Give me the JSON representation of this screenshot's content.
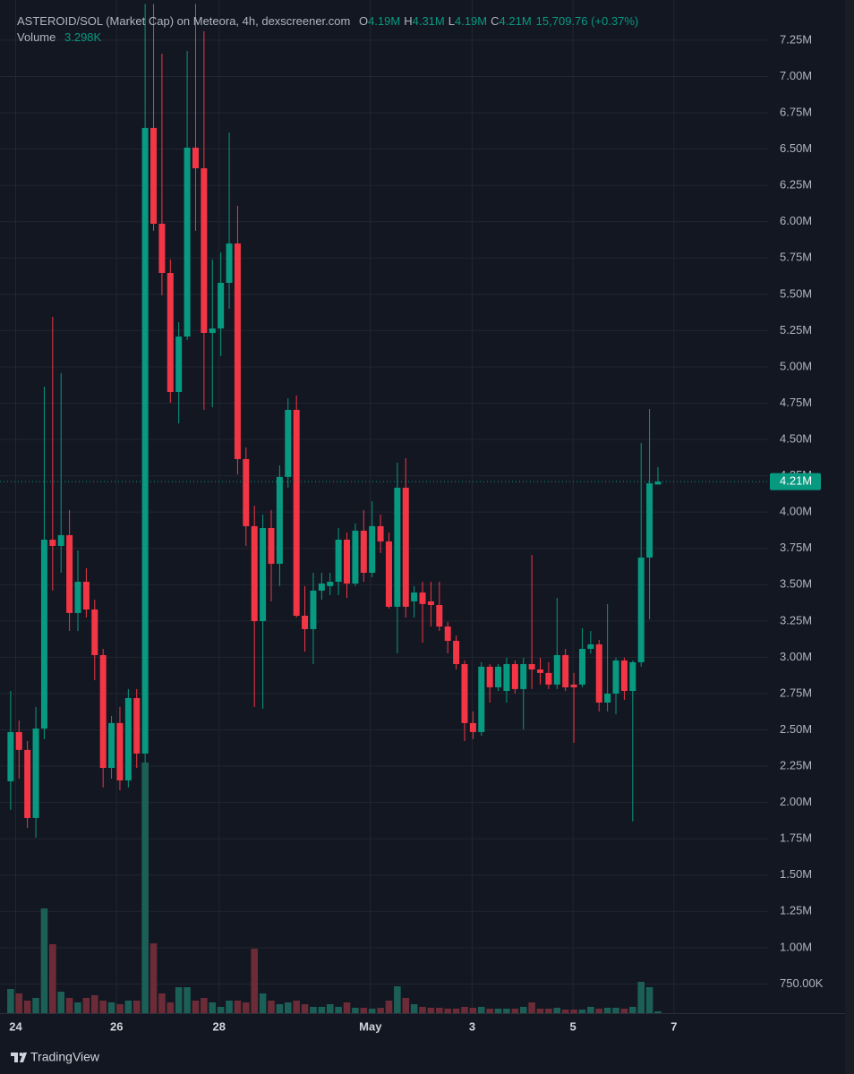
{
  "chart_data": {
    "type": "candlestick",
    "title": "ASTEROID/SOL (Market Cap) on Meteora, 4h, dexscreener.com",
    "ohlc_legend": [
      {
        "key": "O",
        "value": "4.19M"
      },
      {
        "key": "H",
        "value": "4.31M"
      },
      {
        "key": "L",
        "value": "4.19M"
      },
      {
        "key": "C",
        "value": "4.21M"
      }
    ],
    "change": "15,709.76 (+0.37%)",
    "volume_title": "Volume",
    "volume_value": "3.298K",
    "up_color": "#089981",
    "down_color": "#f23645",
    "volume_up_color": "#1b5f57",
    "volume_down_color": "#6b2c37",
    "grid": true,
    "open": [
      2146000,
      2485000,
      2362000,
      1893000,
      2509000,
      3810000,
      3767000,
      3841000,
      3305000,
      3520000,
      3329000,
      3015000,
      2238000,
      2547000,
      2152000,
      2719000,
      2337000,
      6646000,
      5986000,
      5647000,
      4827000,
      5209000,
      6510000,
      6368000,
      5234000,
      5265000,
      5579000,
      5850000,
      4365000,
      3903000,
      3249000,
      3890000,
      3644000,
      4242000,
      4704000,
      3286000,
      3194000,
      3459000,
      3490000,
      3520000,
      3810000,
      3508000,
      3872000,
      3582000,
      3903000,
      3798000,
      3348000,
      4168000,
      3385000,
      3446000,
      3385000,
      3360000,
      3212000,
      3113000,
      2953000,
      2547000,
      2485000,
      2935000,
      2793000,
      2768000,
      2953000,
      2781000,
      2953000,
      2916000,
      2892000,
      2812000,
      3015000,
      2812000,
      2812000,
      3058000,
      3089000,
      2688000,
      2750000,
      2978000,
      2768000,
      2966000,
      3687000,
      4190000
    ],
    "high": [
      2768000,
      2565000,
      2423000,
      2658000,
      4864000,
      5345000,
      4957000,
      4014000,
      3736000,
      3613000,
      3397000,
      3058000,
      2596000,
      2658000,
      2781000,
      2781000,
      7500000,
      7500000,
      7157000,
      5740000,
      5308000,
      7176000,
      7500000,
      7311000,
      5740000,
      5789000,
      6615000,
      6109000,
      4445000,
      4044000,
      3983000,
      4014000,
      4322000,
      4784000,
      4803000,
      3490000,
      3582000,
      3582000,
      3582000,
      3890000,
      3859000,
      3921000,
      4014000,
      4075000,
      3983000,
      3859000,
      4340000,
      4371000,
      3490000,
      3520000,
      3520000,
      3520000,
      3243000,
      3150000,
      2978000,
      2627000,
      2966000,
      2953000,
      2953000,
      2997000,
      2978000,
      2997000,
      3705000,
      2997000,
      2966000,
      3409000,
      3058000,
      2892000,
      3200000,
      3181000,
      3120000,
      3366000,
      2997000,
      2997000,
      2978000,
      4476000,
      4710000,
      4310000
    ],
    "low": [
      1949000,
      2164000,
      1825000,
      1758000,
      2436000,
      3459000,
      3582000,
      3181000,
      3181000,
      3274000,
      2842000,
      2103000,
      2164000,
      2084000,
      2103000,
      2238000,
      2275000,
      5937000,
      5493000,
      4753000,
      4611000,
      5185000,
      5937000,
      4704000,
      4722000,
      5074000,
      5400000,
      4260000,
      3767000,
      2658000,
      2646000,
      3385000,
      3490000,
      4168000,
      3274000,
      3039000,
      2953000,
      3397000,
      3428000,
      3428000,
      3409000,
      3490000,
      3520000,
      3551000,
      3718000,
      3336000,
      3027000,
      3274000,
      3274000,
      3101000,
      3212000,
      3181000,
      3027000,
      2916000,
      2423000,
      2436000,
      2460000,
      2688000,
      2768000,
      2688000,
      2750000,
      2503000,
      2781000,
      2812000,
      2781000,
      2781000,
      2768000,
      2411000,
      2793000,
      3027000,
      2627000,
      2627000,
      2608000,
      2707000,
      1869000,
      2935000,
      3261000,
      4190000
    ],
    "close": [
      2485000,
      2362000,
      1893000,
      2509000,
      3810000,
      3767000,
      3841000,
      3305000,
      3520000,
      3329000,
      3015000,
      2238000,
      2547000,
      2152000,
      2719000,
      2337000,
      6646000,
      5986000,
      5647000,
      4827000,
      5209000,
      6510000,
      6368000,
      5234000,
      5265000,
      5579000,
      5850000,
      4365000,
      3903000,
      3249000,
      3890000,
      3644000,
      4242000,
      4704000,
      3286000,
      3194000,
      3459000,
      3508000,
      3520000,
      3810000,
      3508000,
      3872000,
      3582000,
      3903000,
      3798000,
      3348000,
      4168000,
      3348000,
      3446000,
      3367000,
      3360000,
      3212000,
      3113000,
      2953000,
      2547000,
      2485000,
      2935000,
      2793000,
      2935000,
      2953000,
      2781000,
      2953000,
      2916000,
      2892000,
      2812000,
      3015000,
      2793000,
      2793000,
      3058000,
      3089000,
      2688000,
      2750000,
      2978000,
      2768000,
      2966000,
      3687000,
      4198000,
      4210000
    ],
    "volume": [
      44600,
      36300,
      23100,
      28100,
      193100,
      127100,
      39600,
      28100,
      19800,
      28100,
      33000,
      23100,
      19800,
      16500,
      23100,
      23100,
      462000,
      128700,
      36300,
      19800,
      47900,
      47900,
      23100,
      28100,
      19800,
      11600,
      23100,
      23100,
      19800,
      118800,
      36300,
      23100,
      16500,
      19800,
      23100,
      16500,
      11600,
      11600,
      16500,
      11600,
      19800,
      9900,
      9900,
      8300,
      9900,
      23100,
      49500,
      28100,
      16500,
      11600,
      9900,
      9900,
      8300,
      8300,
      11600,
      9900,
      11600,
      8300,
      8300,
      8300,
      8300,
      11600,
      19800,
      8300,
      8300,
      9900,
      6600,
      6600,
      6600,
      11600,
      8300,
      9900,
      9900,
      8300,
      11600,
      57800,
      47900,
      3298
    ],
    "volume_lim": [
      0,
      1000000
    ],
    "last_price": 4210000,
    "last_price_label": "4.21M",
    "xlim": [
      -0.2,
      90.1
    ],
    "xticks": [
      {
        "value": 0.6,
        "label": "24"
      },
      {
        "value": 12.6,
        "label": "26"
      },
      {
        "value": 24.8,
        "label": "28"
      },
      {
        "value": 42.8,
        "label": "May"
      },
      {
        "value": 54.9,
        "label": "3"
      },
      {
        "value": 66.9,
        "label": "5"
      },
      {
        "value": 78.9,
        "label": "7"
      }
    ],
    "ylim": [
      549000,
      7527000
    ],
    "yticks": [
      {
        "value": 750000,
        "label": "750.00K"
      },
      {
        "value": 1000000,
        "label": "1.00M"
      },
      {
        "value": 1250000,
        "label": "1.25M"
      },
      {
        "value": 1500000,
        "label": "1.50M"
      },
      {
        "value": 1750000,
        "label": "1.75M"
      },
      {
        "value": 2000000,
        "label": "2.00M"
      },
      {
        "value": 2250000,
        "label": "2.25M"
      },
      {
        "value": 2500000,
        "label": "2.50M"
      },
      {
        "value": 2750000,
        "label": "2.75M"
      },
      {
        "value": 3000000,
        "label": "3.00M"
      },
      {
        "value": 3250000,
        "label": "3.25M"
      },
      {
        "value": 3500000,
        "label": "3.50M"
      },
      {
        "value": 3750000,
        "label": "3.75M"
      },
      {
        "value": 4000000,
        "label": "4.00M"
      },
      {
        "value": 4250000,
        "label": "4.25M"
      },
      {
        "value": 4500000,
        "label": "4.50M"
      },
      {
        "value": 4750000,
        "label": "4.75M"
      },
      {
        "value": 5000000,
        "label": "5.00M"
      },
      {
        "value": 5250000,
        "label": "5.25M"
      },
      {
        "value": 5500000,
        "label": "5.50M"
      },
      {
        "value": 5750000,
        "label": "5.75M"
      },
      {
        "value": 6000000,
        "label": "6.00M"
      },
      {
        "value": 6250000,
        "label": "6.25M"
      },
      {
        "value": 6500000,
        "label": "6.50M"
      },
      {
        "value": 6750000,
        "label": "6.75M"
      },
      {
        "value": 7000000,
        "label": "7.00M"
      },
      {
        "value": 7250000,
        "label": "7.25M"
      }
    ]
  },
  "branding": "TradingView"
}
